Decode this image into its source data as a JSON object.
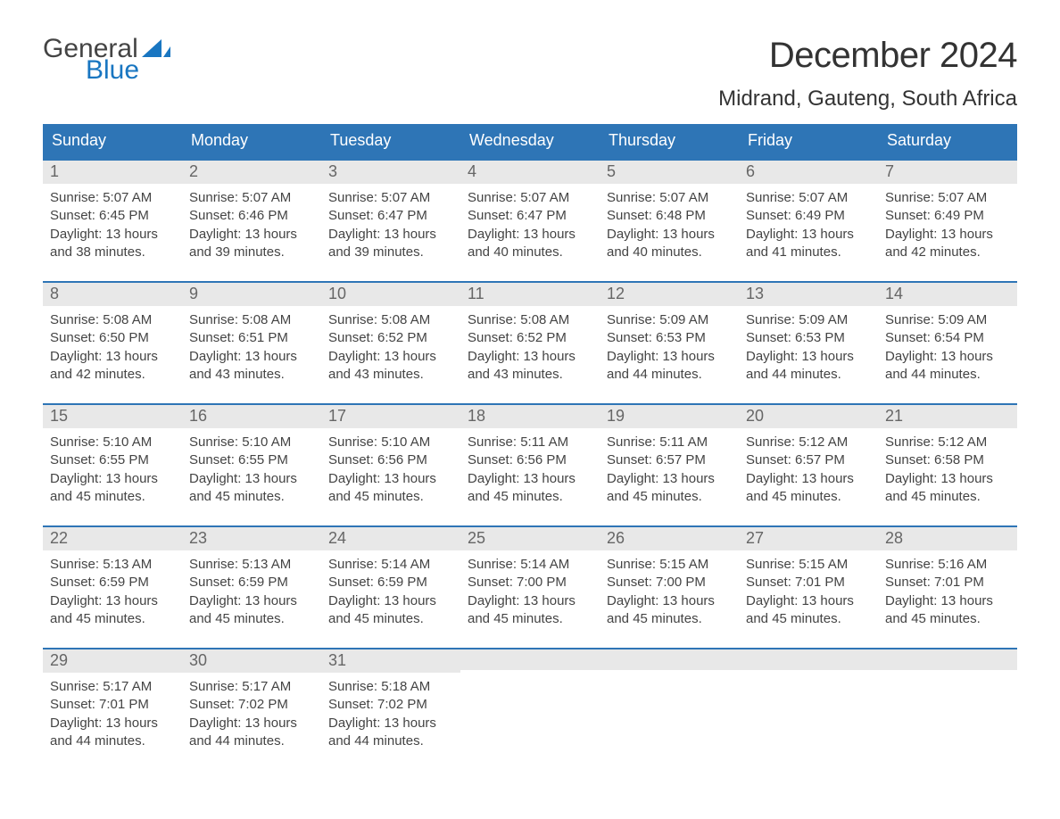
{
  "logo": {
    "word1": "General",
    "word2": "Blue",
    "sail_color": "#1976c1",
    "text_color_dark": "#444444"
  },
  "title": "December 2024",
  "location": "Midrand, Gauteng, South Africa",
  "colors": {
    "header_bg": "#2e75b6",
    "header_text": "#ffffff",
    "daynum_bg": "#e8e8e8",
    "daynum_text": "#666666",
    "body_text": "#444444",
    "week_border": "#2e75b6",
    "page_bg": "#ffffff"
  },
  "weekdays": [
    "Sunday",
    "Monday",
    "Tuesday",
    "Wednesday",
    "Thursday",
    "Friday",
    "Saturday"
  ],
  "weeks": [
    [
      {
        "n": "1",
        "sunrise": "5:07 AM",
        "sunset": "6:45 PM",
        "dl1": "13 hours",
        "dl2": "and 38 minutes."
      },
      {
        "n": "2",
        "sunrise": "5:07 AM",
        "sunset": "6:46 PM",
        "dl1": "13 hours",
        "dl2": "and 39 minutes."
      },
      {
        "n": "3",
        "sunrise": "5:07 AM",
        "sunset": "6:47 PM",
        "dl1": "13 hours",
        "dl2": "and 39 minutes."
      },
      {
        "n": "4",
        "sunrise": "5:07 AM",
        "sunset": "6:47 PM",
        "dl1": "13 hours",
        "dl2": "and 40 minutes."
      },
      {
        "n": "5",
        "sunrise": "5:07 AM",
        "sunset": "6:48 PM",
        "dl1": "13 hours",
        "dl2": "and 40 minutes."
      },
      {
        "n": "6",
        "sunrise": "5:07 AM",
        "sunset": "6:49 PM",
        "dl1": "13 hours",
        "dl2": "and 41 minutes."
      },
      {
        "n": "7",
        "sunrise": "5:07 AM",
        "sunset": "6:49 PM",
        "dl1": "13 hours",
        "dl2": "and 42 minutes."
      }
    ],
    [
      {
        "n": "8",
        "sunrise": "5:08 AM",
        "sunset": "6:50 PM",
        "dl1": "13 hours",
        "dl2": "and 42 minutes."
      },
      {
        "n": "9",
        "sunrise": "5:08 AM",
        "sunset": "6:51 PM",
        "dl1": "13 hours",
        "dl2": "and 43 minutes."
      },
      {
        "n": "10",
        "sunrise": "5:08 AM",
        "sunset": "6:52 PM",
        "dl1": "13 hours",
        "dl2": "and 43 minutes."
      },
      {
        "n": "11",
        "sunrise": "5:08 AM",
        "sunset": "6:52 PM",
        "dl1": "13 hours",
        "dl2": "and 43 minutes."
      },
      {
        "n": "12",
        "sunrise": "5:09 AM",
        "sunset": "6:53 PM",
        "dl1": "13 hours",
        "dl2": "and 44 minutes."
      },
      {
        "n": "13",
        "sunrise": "5:09 AM",
        "sunset": "6:53 PM",
        "dl1": "13 hours",
        "dl2": "and 44 minutes."
      },
      {
        "n": "14",
        "sunrise": "5:09 AM",
        "sunset": "6:54 PM",
        "dl1": "13 hours",
        "dl2": "and 44 minutes."
      }
    ],
    [
      {
        "n": "15",
        "sunrise": "5:10 AM",
        "sunset": "6:55 PM",
        "dl1": "13 hours",
        "dl2": "and 45 minutes."
      },
      {
        "n": "16",
        "sunrise": "5:10 AM",
        "sunset": "6:55 PM",
        "dl1": "13 hours",
        "dl2": "and 45 minutes."
      },
      {
        "n": "17",
        "sunrise": "5:10 AM",
        "sunset": "6:56 PM",
        "dl1": "13 hours",
        "dl2": "and 45 minutes."
      },
      {
        "n": "18",
        "sunrise": "5:11 AM",
        "sunset": "6:56 PM",
        "dl1": "13 hours",
        "dl2": "and 45 minutes."
      },
      {
        "n": "19",
        "sunrise": "5:11 AM",
        "sunset": "6:57 PM",
        "dl1": "13 hours",
        "dl2": "and 45 minutes."
      },
      {
        "n": "20",
        "sunrise": "5:12 AM",
        "sunset": "6:57 PM",
        "dl1": "13 hours",
        "dl2": "and 45 minutes."
      },
      {
        "n": "21",
        "sunrise": "5:12 AM",
        "sunset": "6:58 PM",
        "dl1": "13 hours",
        "dl2": "and 45 minutes."
      }
    ],
    [
      {
        "n": "22",
        "sunrise": "5:13 AM",
        "sunset": "6:59 PM",
        "dl1": "13 hours",
        "dl2": "and 45 minutes."
      },
      {
        "n": "23",
        "sunrise": "5:13 AM",
        "sunset": "6:59 PM",
        "dl1": "13 hours",
        "dl2": "and 45 minutes."
      },
      {
        "n": "24",
        "sunrise": "5:14 AM",
        "sunset": "6:59 PM",
        "dl1": "13 hours",
        "dl2": "and 45 minutes."
      },
      {
        "n": "25",
        "sunrise": "5:14 AM",
        "sunset": "7:00 PM",
        "dl1": "13 hours",
        "dl2": "and 45 minutes."
      },
      {
        "n": "26",
        "sunrise": "5:15 AM",
        "sunset": "7:00 PM",
        "dl1": "13 hours",
        "dl2": "and 45 minutes."
      },
      {
        "n": "27",
        "sunrise": "5:15 AM",
        "sunset": "7:01 PM",
        "dl1": "13 hours",
        "dl2": "and 45 minutes."
      },
      {
        "n": "28",
        "sunrise": "5:16 AM",
        "sunset": "7:01 PM",
        "dl1": "13 hours",
        "dl2": "and 45 minutes."
      }
    ],
    [
      {
        "n": "29",
        "sunrise": "5:17 AM",
        "sunset": "7:01 PM",
        "dl1": "13 hours",
        "dl2": "and 44 minutes."
      },
      {
        "n": "30",
        "sunrise": "5:17 AM",
        "sunset": "7:02 PM",
        "dl1": "13 hours",
        "dl2": "and 44 minutes."
      },
      {
        "n": "31",
        "sunrise": "5:18 AM",
        "sunset": "7:02 PM",
        "dl1": "13 hours",
        "dl2": "and 44 minutes."
      },
      null,
      null,
      null,
      null
    ]
  ],
  "labels": {
    "sunrise": "Sunrise:",
    "sunset": "Sunset:",
    "daylight": "Daylight:"
  }
}
